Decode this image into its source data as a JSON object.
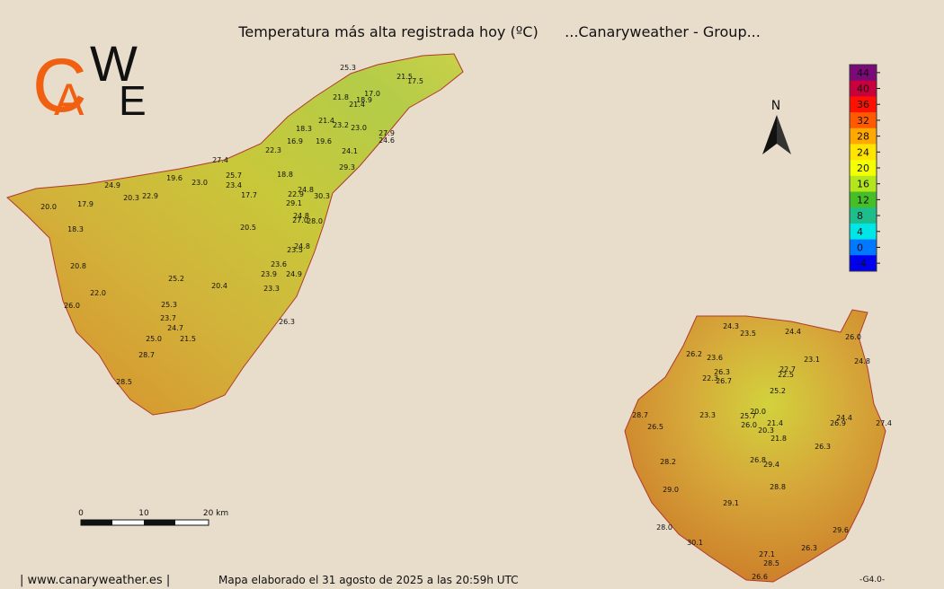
{
  "header": {
    "title": "Temperatura más alta registrada hoy (ºC)",
    "group": "...Canaryweather - Group..."
  },
  "logo": [
    "C",
    "A",
    "W",
    "E"
  ],
  "north": "N",
  "legend": {
    "ticks": [
      44,
      40,
      36,
      32,
      28,
      24,
      20,
      16,
      12,
      8,
      4,
      0,
      -4
    ],
    "colors": [
      "#7a0a78",
      "#c8003c",
      "#ff1000",
      "#ff5a00",
      "#ffa800",
      "#ffe400",
      "#f4ff00",
      "#b4e61e",
      "#46be28",
      "#1ebe8c",
      "#00e6e6",
      "#0078ff",
      "#0000f0"
    ]
  },
  "scale_bar": [
    "0",
    "10",
    "20 km"
  ],
  "tenerife": [
    "25.3",
    "21.5",
    "17.5",
    "21.8",
    "18.9",
    "17.0",
    "21.4",
    "21.4",
    "23.2",
    "23.0",
    "18.3",
    "19.6",
    "16.9",
    "27.9",
    "24.6",
    "22.3",
    "24.1",
    "27.4",
    "29.3",
    "25.7",
    "19.6",
    "23.0",
    "23.4",
    "18.8",
    "24.9",
    "20.3",
    "22.9",
    "17.7",
    "22.9",
    "24.8",
    "30.3",
    "29.1",
    "20.0",
    "17.9",
    "24.8",
    "27.0",
    "28.0",
    "20.5",
    "18.3",
    "23.5",
    "24.8",
    "20.8",
    "23.6",
    "23.9",
    "24.9",
    "25.2",
    "20.4",
    "23.3",
    "22.0",
    "26.0",
    "25.3",
    "23.7",
    "26.3",
    "24.7",
    "25.0",
    "21.5",
    "28.7",
    "28.5"
  ],
  "gran_canaria": [
    "24.3",
    "23.5",
    "24.4",
    "26.0",
    "26.2",
    "23.6",
    "23.1",
    "24.8",
    "26.3",
    "22.7",
    "22.3",
    "26.7",
    "22.5",
    "25.2",
    "20.0",
    "28.7",
    "23.3",
    "25.7",
    "24.4",
    "26.0",
    "21.4",
    "26.9",
    "27.4",
    "26.5",
    "20.3",
    "21.8",
    "26.3",
    "28.2",
    "26.8",
    "29.4",
    "28.8",
    "29.0",
    "29.1",
    "28.0",
    "29.6",
    "30.1",
    "26.3",
    "27.1",
    "28.5",
    "26.6"
  ],
  "footer": {
    "site": "| www.canaryweather.es |",
    "note": "Mapa elaborado el 31 agosto de 2025 a las 20:59h UTC",
    "version": "-G4.0-"
  }
}
